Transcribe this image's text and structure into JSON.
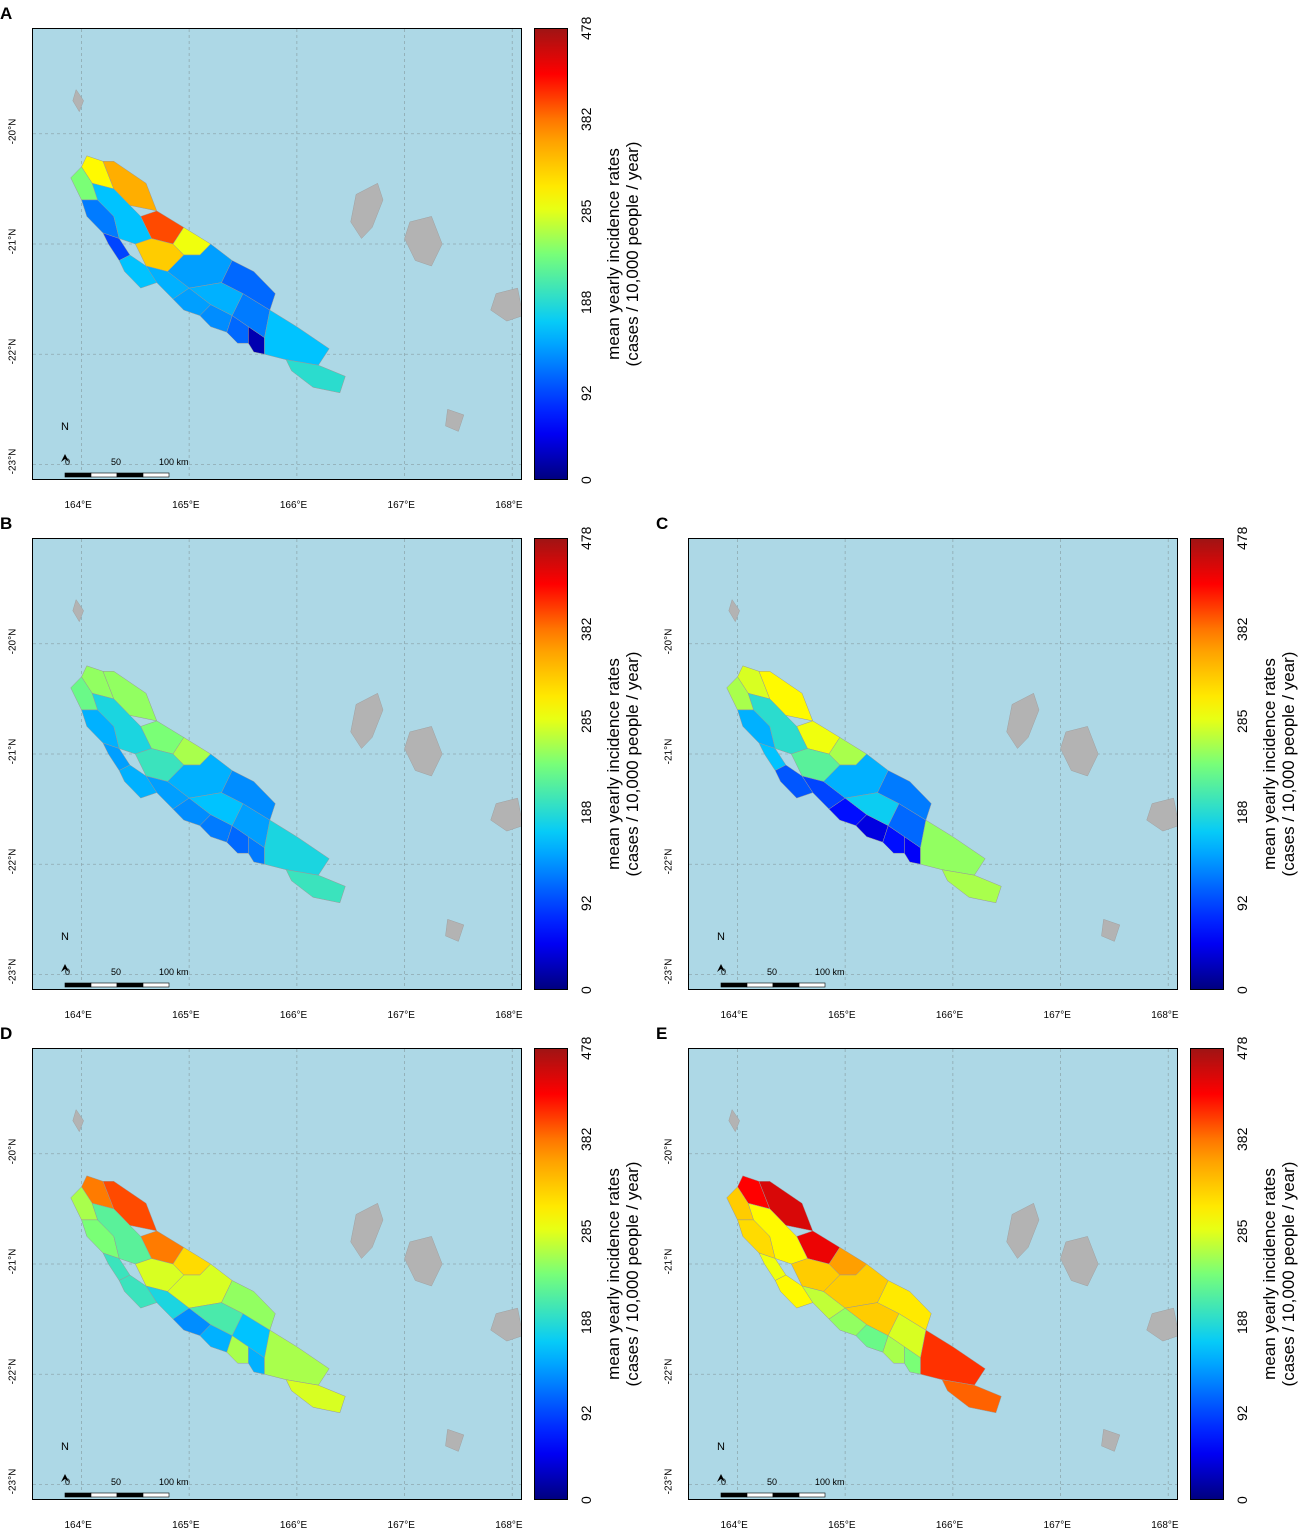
{
  "colorbar": {
    "title_line1": "mean yearly incidence rates",
    "title_line2": "(cases / 10,000 people / year)",
    "ticks": [
      "0",
      "92",
      "188",
      "285",
      "382",
      "478"
    ],
    "tick_values": [
      0,
      92,
      188,
      285,
      382,
      478
    ],
    "range": [
      0,
      478
    ]
  },
  "axes": {
    "lat_labels": [
      "-20°N",
      "-21°N",
      "-22°N",
      "-23°N"
    ],
    "lon_labels": [
      "164°E",
      "165°E",
      "166°E",
      "167°E",
      "168°E"
    ]
  },
  "scale_bar": {
    "labels": [
      "0",
      "50",
      "100 km"
    ]
  },
  "north_arrow": {
    "label": "N"
  },
  "colors": {
    "sea": "#add8e6",
    "land_other": "#b3b3b3",
    "grid": "#8fa8b0"
  },
  "panels": [
    {
      "letter": "A",
      "region_values": [
        300,
        240,
        350,
        400,
        120,
        90,
        160,
        290,
        330,
        160,
        150,
        140,
        130,
        110,
        20,
        140,
        150,
        120,
        110,
        160,
        190
      ]
    },
    {
      "letter": "B",
      "region_values": [
        250,
        230,
        250,
        240,
        150,
        140,
        180,
        260,
        200,
        150,
        140,
        130,
        120,
        110,
        120,
        150,
        160,
        140,
        130,
        180,
        200
      ]
    },
    {
      "letter": "C",
      "region_values": [
        280,
        260,
        300,
        290,
        150,
        160,
        190,
        260,
        220,
        100,
        90,
        60,
        40,
        60,
        50,
        150,
        170,
        110,
        120,
        250,
        260
      ]
    },
    {
      "letter": "D",
      "region_values": [
        380,
        260,
        400,
        380,
        240,
        200,
        220,
        320,
        280,
        200,
        180,
        130,
        150,
        260,
        150,
        280,
        210,
        160,
        250,
        260,
        280
      ]
    },
    {
      "letter": "E",
      "region_values": [
        430,
        330,
        450,
        440,
        320,
        290,
        300,
        360,
        330,
        300,
        270,
        250,
        230,
        260,
        240,
        330,
        330,
        280,
        310,
        410,
        390
      ]
    }
  ]
}
